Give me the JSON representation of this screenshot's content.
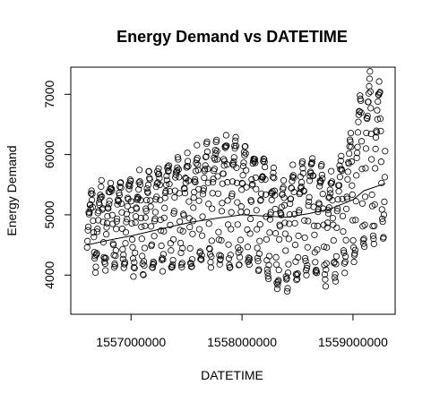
{
  "chart_data": {
    "type": "scatter",
    "title": "Energy Demand vs DATETIME",
    "xlabel": "DATETIME",
    "ylabel": "Energy Demand",
    "xlim": [
      1556457000,
      1559380000
    ],
    "ylim": [
      3350,
      7450
    ],
    "xticks": [
      1557000000,
      1558000000,
      1559000000
    ],
    "xtick_labels": [
      "1557000000",
      "1558000000",
      "1559000000"
    ],
    "yticks": [
      4000,
      5000,
      6000,
      7000
    ],
    "ytick_labels": [
      "4000",
      "5000",
      "6000",
      "7000"
    ],
    "grid": false,
    "legend": "none",
    "color": "#000000",
    "series": [
      {
        "name": "",
        "cycle_seconds": 86400,
        "point_step_seconds": 3600,
        "x_start": 1556604000,
        "x_end": 1559290000,
        "daily_profile": [
          0.18,
          0.08,
          0.03,
          0.0,
          0.02,
          0.1,
          0.25,
          0.42,
          0.55,
          0.63,
          0.69,
          0.74,
          0.79,
          0.82,
          0.86,
          0.9,
          0.95,
          1.0,
          0.98,
          0.91,
          0.8,
          0.66,
          0.48,
          0.3
        ],
        "baseline_points": [
          [
            1556604000,
            4100
          ],
          [
            1556800000,
            4200
          ],
          [
            1557000000,
            4050
          ],
          [
            1557300000,
            4150
          ],
          [
            1557550000,
            4150
          ],
          [
            1557800000,
            4200
          ],
          [
            1558000000,
            4150
          ],
          [
            1558200000,
            4050
          ],
          [
            1558350000,
            3700
          ],
          [
            1558600000,
            4050
          ],
          [
            1558800000,
            3900
          ],
          [
            1559000000,
            4200
          ],
          [
            1559100000,
            4450
          ],
          [
            1559290000,
            4700
          ]
        ],
        "amplitude_points": [
          [
            1556604000,
            1200
          ],
          [
            1556800000,
            1300
          ],
          [
            1557000000,
            1500
          ],
          [
            1557300000,
            1700
          ],
          [
            1557550000,
            1850
          ],
          [
            1557800000,
            2100
          ],
          [
            1558000000,
            2000
          ],
          [
            1558200000,
            1900
          ],
          [
            1558350000,
            1800
          ],
          [
            1558600000,
            1950
          ],
          [
            1558800000,
            1700
          ],
          [
            1559000000,
            2200
          ],
          [
            1559100000,
            2900
          ],
          [
            1559290000,
            2400
          ]
        ]
      }
    ],
    "trend_line": {
      "x": [
        1556604000,
        1556800000,
        1557000000,
        1557300000,
        1557550000,
        1557800000,
        1558000000,
        1558200000,
        1558400000,
        1558600000,
        1558800000,
        1559000000,
        1559100000,
        1559290000
      ],
      "y": [
        4500,
        4580,
        4650,
        4780,
        4880,
        4950,
        5000,
        4980,
        4960,
        5020,
        5100,
        5250,
        5400,
        5520
      ]
    }
  }
}
